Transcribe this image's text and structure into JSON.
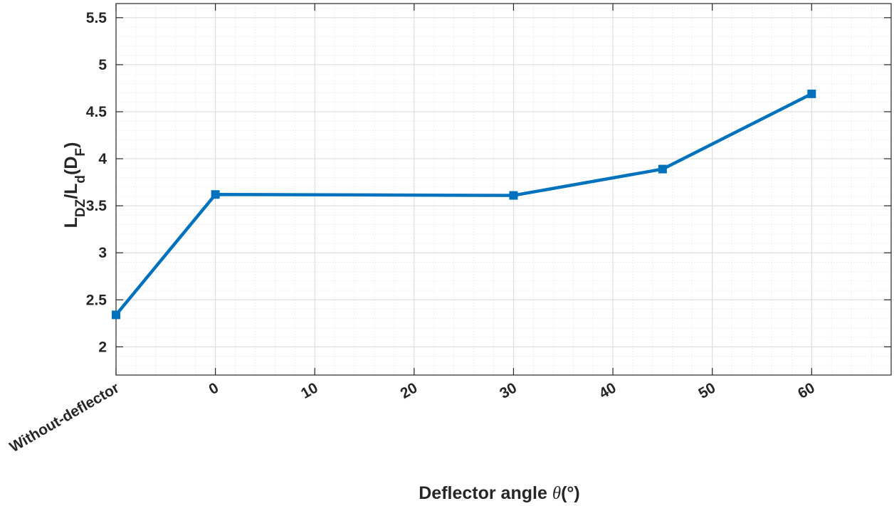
{
  "chart_data": {
    "type": "line",
    "xlabel": "Deflector angle",
    "xlabel_symbol": "θ",
    "xlabel_unit": "(°)",
    "ylabel": {
      "base": "L",
      "sub1": "DZ",
      "mid": "/L",
      "sub2": "d",
      "open": "(D",
      "sub3": "F",
      "close": ")"
    },
    "xlim": [
      -10,
      68
    ],
    "ylim": [
      1.7,
      5.65
    ],
    "x_ticks": [
      -10,
      0,
      10,
      20,
      30,
      40,
      50,
      60
    ],
    "x_tick_labels": [
      "Without-deflector",
      "0",
      "10",
      "20",
      "30",
      "40",
      "50",
      "60"
    ],
    "y_ticks": [
      2,
      2.5,
      3,
      3.5,
      4,
      4.5,
      5,
      5.5
    ],
    "y_tick_labels": [
      "2",
      "2.5",
      "3",
      "3.5",
      "4",
      "4.5",
      "5",
      "5.5"
    ],
    "grid": true,
    "minor_grid": true,
    "series": [
      {
        "color": "#0072BD",
        "marker": "square",
        "x": [
          -10,
          0,
          30,
          45,
          60
        ],
        "y": [
          2.34,
          3.62,
          3.61,
          3.89,
          4.69
        ]
      }
    ]
  }
}
